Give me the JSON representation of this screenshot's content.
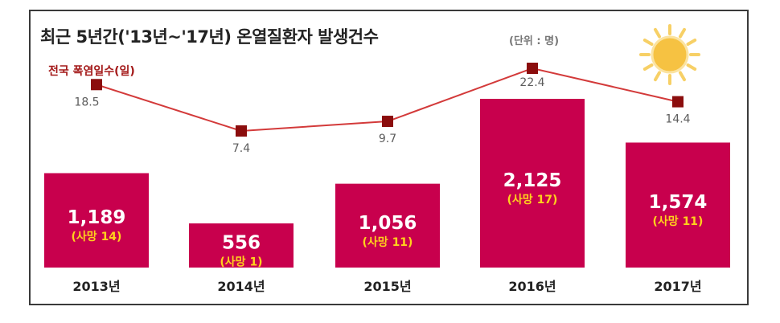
{
  "header": {
    "title": "최근 5년간('13년~'17년) 온열질환자 발생건수",
    "unit": "(단위 : 명)"
  },
  "legend": {
    "line_label": "전국 폭염일수(일)"
  },
  "colors": {
    "bar": "#c8004d",
    "line": "#d33a3a",
    "marker": "#8b0d0d",
    "deaths_text": "#ffd21c",
    "sun": "#f6c242"
  },
  "icons": {
    "sun": "sun-icon"
  },
  "chart_data": {
    "type": "bar",
    "title": "최근 5년간('13년~'17년) 온열질환자 발생건수",
    "unit": "(단위 : 명)",
    "categories": [
      "2013년",
      "2014년",
      "2015년",
      "2016년",
      "2017년"
    ],
    "series": [
      {
        "name": "온열질환자",
        "type": "bar",
        "values": [
          1189,
          556,
          1056,
          2125,
          1574
        ],
        "labels": [
          "1,189",
          "556",
          "1,056",
          "2,125",
          "1,574"
        ]
      },
      {
        "name": "사망",
        "type": "annotation",
        "values": [
          14,
          1,
          11,
          17,
          11
        ],
        "labels": [
          "(사망 14)",
          "(사망 1)",
          "(사망 11)",
          "(사망 17)",
          "(사망 11)"
        ]
      },
      {
        "name": "전국 폭염일수(일)",
        "type": "line",
        "values": [
          18.5,
          7.4,
          9.7,
          22.4,
          14.4
        ],
        "labels": [
          "18.5",
          "7.4",
          "9.7",
          "22.4",
          "14.4"
        ]
      }
    ],
    "ylim": [
      0,
      2125
    ],
    "line_ylim": [
      7.4,
      22.4
    ],
    "legend": "top-left"
  }
}
